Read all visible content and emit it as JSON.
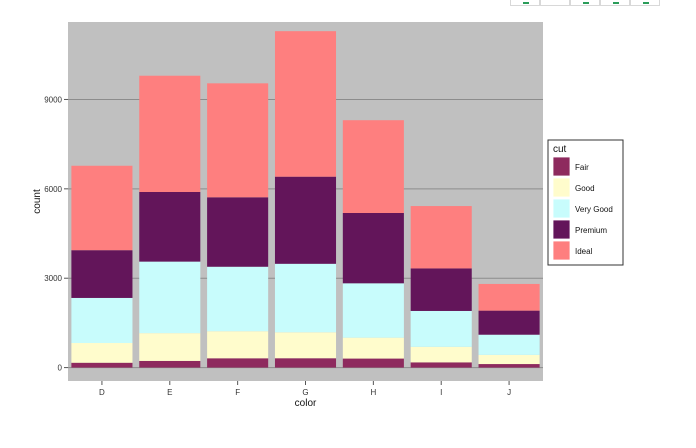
{
  "corner_icons": [
    {
      "name": "toolbar-icon-1"
    },
    {
      "name": "toolbar-icon-2"
    },
    {
      "name": "toolbar-icon-3"
    },
    {
      "name": "toolbar-icon-4"
    },
    {
      "name": "toolbar-icon-5"
    }
  ],
  "chart_data": {
    "type": "bar",
    "stacked": true,
    "categories": [
      "D",
      "E",
      "F",
      "G",
      "H",
      "I",
      "J"
    ],
    "xlabel": "color",
    "ylabel": "count",
    "ylim": [
      -450,
      11600
    ],
    "yticks": [
      0,
      3000,
      6000,
      9000
    ],
    "ytick_labels": [
      "0",
      "3000",
      "6000",
      "9000"
    ],
    "grid": true,
    "legend_title": "cut",
    "legend_position": "right",
    "background": "#c0c0c0",
    "series": [
      {
        "name": "Fair",
        "color": "#8e2a5e",
        "values": [
          163,
          224,
          312,
          314,
          303,
          175,
          119
        ]
      },
      {
        "name": "Good",
        "color": "#fffccc",
        "values": [
          662,
          933,
          909,
          871,
          702,
          522,
          307
        ]
      },
      {
        "name": "Very Good",
        "color": "#c8fcfc",
        "values": [
          1513,
          2400,
          2164,
          2299,
          1824,
          1204,
          678
        ]
      },
      {
        "name": "Premium",
        "color": "#63155a",
        "values": [
          1603,
          2337,
          2331,
          2924,
          2360,
          1428,
          808
        ]
      },
      {
        "name": "Ideal",
        "color": "#fe7f7f",
        "values": [
          2834,
          3903,
          3826,
          4884,
          3115,
          2093,
          896
        ]
      }
    ]
  }
}
